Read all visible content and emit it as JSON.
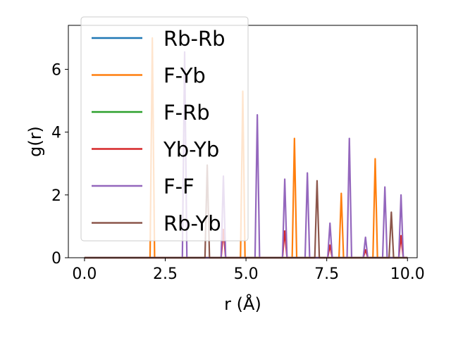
{
  "chart_data": {
    "type": "line",
    "xlabel": "r (Å)",
    "ylabel": "g(r)",
    "xlim": [
      -0.5,
      10.3
    ],
    "ylim": [
      0,
      7.4
    ],
    "xticks": [
      0.0,
      2.5,
      5.0,
      7.5,
      10.0
    ],
    "xtick_labels": [
      "0.0",
      "2.5",
      "5.0",
      "7.5",
      "10.0"
    ],
    "yticks": [
      0,
      2,
      4,
      6
    ],
    "ytick_labels": [
      "0",
      "2",
      "4",
      "6"
    ],
    "grid": false,
    "legend_position": "upper-left",
    "peak_half_width": 0.07,
    "series": [
      {
        "name": "Rb-Rb",
        "color": "#1f77b4",
        "peaks": []
      },
      {
        "name": "F-Yb",
        "color": "#ff7f0e",
        "peaks": [
          [
            2.1,
            7.0
          ],
          [
            4.9,
            5.3
          ],
          [
            6.5,
            3.8
          ],
          [
            7.95,
            2.05
          ],
          [
            9.0,
            3.15
          ]
        ]
      },
      {
        "name": "F-Rb",
        "color": "#2ca02c",
        "peaks": []
      },
      {
        "name": "Yb-Yb",
        "color": "#d62728",
        "peaks": [
          [
            4.3,
            0.9
          ],
          [
            6.2,
            0.85
          ],
          [
            7.6,
            0.4
          ],
          [
            8.7,
            0.25
          ],
          [
            9.8,
            0.7
          ]
        ]
      },
      {
        "name": "F-F",
        "color": "#9467bd",
        "peaks": [
          [
            3.1,
            6.55
          ],
          [
            4.3,
            2.6
          ],
          [
            5.35,
            4.55
          ],
          [
            6.2,
            2.5
          ],
          [
            6.9,
            2.7
          ],
          [
            7.6,
            1.1
          ],
          [
            8.2,
            3.8
          ],
          [
            8.7,
            0.65
          ],
          [
            9.3,
            2.25
          ],
          [
            9.8,
            2.0
          ]
        ]
      },
      {
        "name": "Rb-Yb",
        "color": "#8c564b",
        "peaks": [
          [
            3.8,
            2.95
          ],
          [
            7.2,
            2.45
          ],
          [
            9.5,
            1.45
          ]
        ]
      }
    ]
  }
}
